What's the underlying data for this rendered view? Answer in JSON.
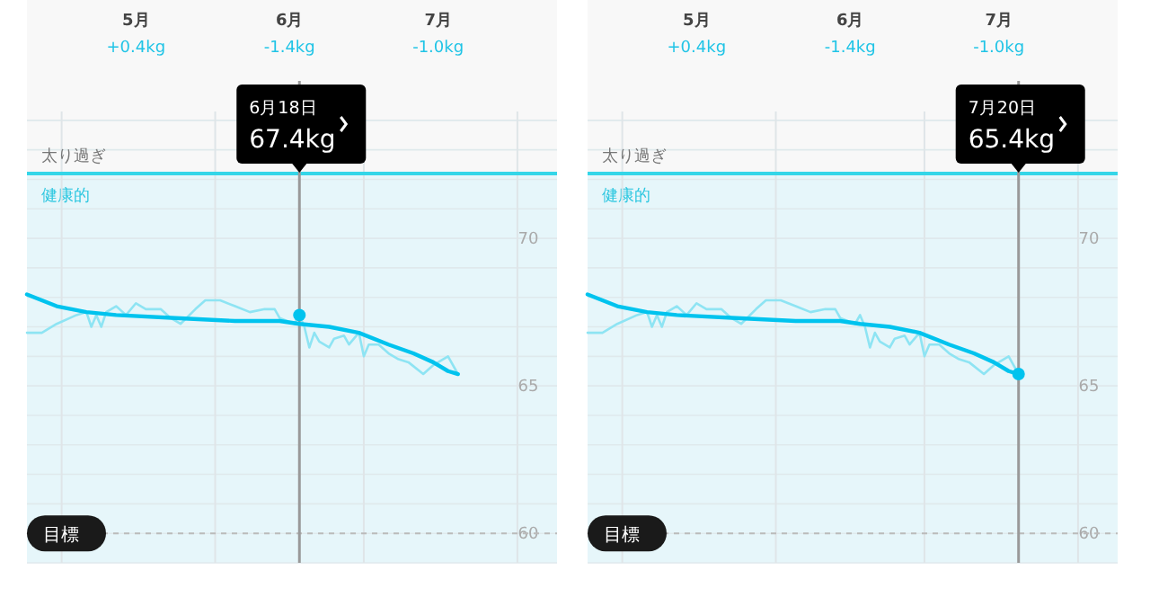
{
  "chart_data": [
    {
      "type": "line",
      "xlim": [
        "--04-24",
        "--08-09"
      ],
      "xticks": [
        {
          "value": "--05-01",
          "label": null
        },
        {
          "value": "--05-16",
          "label": "5月"
        },
        {
          "value": "--06-01",
          "label": null
        },
        {
          "value": "--06-16",
          "label": "6月"
        },
        {
          "value": "--07-01",
          "label": null
        },
        {
          "value": "--07-16",
          "label": "7月"
        },
        {
          "value": "--08-01",
          "label": null
        }
      ],
      "ylim": [
        59,
        74.3
      ],
      "yticks": [
        {
          "value": 59,
          "label": null
        },
        60,
        {
          "value": 61,
          "label": null
        },
        {
          "value": 62,
          "label": null
        },
        {
          "value": 63,
          "label": null
        },
        {
          "value": 64,
          "label": null
        },
        65,
        {
          "value": 66,
          "label": null
        },
        {
          "value": 67,
          "label": null
        },
        {
          "value": 68,
          "label": null
        },
        {
          "value": 69,
          "label": null
        },
        70,
        {
          "value": 71,
          "label": null
        },
        {
          "value": 72,
          "label": null
        },
        {
          "value": 73,
          "label": null
        },
        {
          "value": 74,
          "label": null
        }
      ],
      "grid": true,
      "series": [
        {
          "color": "#8ee4f3",
          "x": [
            "--04-24",
            "--04-27",
            "--04-30",
            "--05-04",
            "--05-06",
            "--05-07",
            "--05-08",
            "--05-09",
            "--05-10",
            "--05-12",
            "--05-14",
            "--05-16",
            "--05-18",
            "--05-21",
            "--05-23",
            "--05-25",
            "--05-28",
            "--05-30",
            "--06-02",
            "--06-05",
            "--06-08",
            "--06-11",
            "--06-13",
            "--06-14",
            "--06-17",
            "--06-18",
            "--06-19",
            "--06-20",
            "--06-21",
            "--06-22",
            "--06-24",
            "--06-25",
            "--06-27",
            "--06-28",
            "--06-30",
            "--07-01",
            "--07-02",
            "--07-04",
            "--07-06",
            "--07-08",
            "--07-10",
            "--07-13",
            "--07-15",
            "--07-17",
            "--07-18",
            "--07-20"
          ],
          "values": [
            66.8,
            66.8,
            67.1,
            67.4,
            67.5,
            67.0,
            67.4,
            67.0,
            67.5,
            67.7,
            67.4,
            67.8,
            67.6,
            67.6,
            67.3,
            67.1,
            67.6,
            67.9,
            67.9,
            67.7,
            67.5,
            67.6,
            67.6,
            67.3,
            67.1,
            67.4,
            67.0,
            66.3,
            66.8,
            66.5,
            66.3,
            66.6,
            66.7,
            66.4,
            66.8,
            66.0,
            66.4,
            66.4,
            66.1,
            65.9,
            65.8,
            65.4,
            65.7,
            65.9,
            66.0,
            65.4
          ]
        },
        {
          "color": "#00c3ee",
          "x": [
            "--04-24",
            "--04-30",
            "--05-06",
            "--05-12",
            "--05-24",
            "--06-05",
            "--06-14",
            "--06-18",
            "--06-24",
            "--06-30",
            "--07-06",
            "--07-11",
            "--07-15",
            "--07-18",
            "--07-20"
          ],
          "values": [
            68.1,
            67.7,
            67.5,
            67.4,
            67.3,
            67.2,
            67.2,
            67.1,
            67.0,
            66.8,
            66.4,
            66.1,
            65.8,
            65.5,
            65.4
          ]
        },
        {
          "type": "scatter",
          "color": "#00c3ee",
          "marker": "circle",
          "x": [
            "--06-18"
          ],
          "values": [
            67.4
          ]
        }
      ],
      "bands": [
        {
          "axis": "y",
          "from": 59,
          "to": 72.2,
          "label": "健康的",
          "color": "#e6f6fa"
        }
      ],
      "ref_lines": [
        {
          "axis": "y",
          "value": 72.2,
          "label": "太り過ぎ",
          "color": "#34d6e8"
        },
        {
          "axis": "y",
          "value": 60,
          "label": "目標",
          "color": "#bbbbbb",
          "line_style": "dashed"
        },
        {
          "axis": "x",
          "value": "--06-18",
          "color": "#999999"
        }
      ],
      "annotations": [
        "+0.4kg",
        "-1.4kg",
        "-1.0kg",
        "6月18日",
        "67.4kg"
      ]
    },
    {
      "type": "line",
      "xlim": [
        "--04-24",
        "--08-09"
      ],
      "xticks": [
        {
          "value": "--05-01",
          "label": null
        },
        {
          "value": "--05-16",
          "label": "5月"
        },
        {
          "value": "--06-01",
          "label": null
        },
        {
          "value": "--06-16",
          "label": "6月"
        },
        {
          "value": "--07-01",
          "label": null
        },
        {
          "value": "--07-16",
          "label": "7月"
        },
        {
          "value": "--08-01",
          "label": null
        }
      ],
      "ylim": [
        59,
        74.3
      ],
      "yticks": [
        {
          "value": 59,
          "label": null
        },
        60,
        {
          "value": 61,
          "label": null
        },
        {
          "value": 62,
          "label": null
        },
        {
          "value": 63,
          "label": null
        },
        {
          "value": 64,
          "label": null
        },
        65,
        {
          "value": 66,
          "label": null
        },
        {
          "value": 67,
          "label": null
        },
        {
          "value": 68,
          "label": null
        },
        {
          "value": 69,
          "label": null
        },
        70,
        {
          "value": 71,
          "label": null
        },
        {
          "value": 72,
          "label": null
        },
        {
          "value": 73,
          "label": null
        },
        {
          "value": 74,
          "label": null
        }
      ],
      "grid": true,
      "series": [
        {
          "color": "#8ee4f3",
          "x": [
            "--04-24",
            "--04-27",
            "--04-30",
            "--05-04",
            "--05-06",
            "--05-07",
            "--05-08",
            "--05-09",
            "--05-10",
            "--05-12",
            "--05-14",
            "--05-16",
            "--05-18",
            "--05-21",
            "--05-23",
            "--05-25",
            "--05-28",
            "--05-30",
            "--06-02",
            "--06-05",
            "--06-08",
            "--06-11",
            "--06-13",
            "--06-14",
            "--06-17",
            "--06-18",
            "--06-19",
            "--06-20",
            "--06-21",
            "--06-22",
            "--06-24",
            "--06-25",
            "--06-27",
            "--06-28",
            "--06-30",
            "--07-01",
            "--07-02",
            "--07-04",
            "--07-06",
            "--07-08",
            "--07-10",
            "--07-13",
            "--07-15",
            "--07-17",
            "--07-18",
            "--07-20"
          ],
          "values": [
            66.8,
            66.8,
            67.1,
            67.4,
            67.5,
            67.0,
            67.4,
            67.0,
            67.5,
            67.7,
            67.4,
            67.8,
            67.6,
            67.6,
            67.3,
            67.1,
            67.6,
            67.9,
            67.9,
            67.7,
            67.5,
            67.6,
            67.6,
            67.3,
            67.1,
            67.4,
            67.0,
            66.3,
            66.8,
            66.5,
            66.3,
            66.6,
            66.7,
            66.4,
            66.8,
            66.0,
            66.4,
            66.4,
            66.1,
            65.9,
            65.8,
            65.4,
            65.7,
            65.9,
            66.0,
            65.4
          ]
        },
        {
          "color": "#00c3ee",
          "x": [
            "--04-24",
            "--04-30",
            "--05-06",
            "--05-12",
            "--05-24",
            "--06-05",
            "--06-14",
            "--06-18",
            "--06-24",
            "--06-30",
            "--07-06",
            "--07-11",
            "--07-15",
            "--07-18",
            "--07-20"
          ],
          "values": [
            68.1,
            67.7,
            67.5,
            67.4,
            67.3,
            67.2,
            67.2,
            67.1,
            67.0,
            66.8,
            66.4,
            66.1,
            65.8,
            65.5,
            65.4
          ]
        },
        {
          "type": "scatter",
          "color": "#00c3ee",
          "marker": "circle",
          "x": [
            "--07-20"
          ],
          "values": [
            65.4
          ]
        }
      ],
      "bands": [
        {
          "axis": "y",
          "from": 59,
          "to": 72.2,
          "label": "健康的",
          "color": "#e6f6fa"
        }
      ],
      "ref_lines": [
        {
          "axis": "y",
          "value": 72.2,
          "label": "太り過ぎ",
          "color": "#34d6e8"
        },
        {
          "axis": "y",
          "value": 60,
          "label": "目標",
          "color": "#bbbbbb",
          "line_style": "dashed"
        },
        {
          "axis": "x",
          "value": "--07-20",
          "color": "#999999"
        }
      ],
      "annotations": [
        "+0.4kg",
        "-1.4kg",
        "-1.0kg",
        "7月20日",
        "65.4kg"
      ]
    }
  ]
}
